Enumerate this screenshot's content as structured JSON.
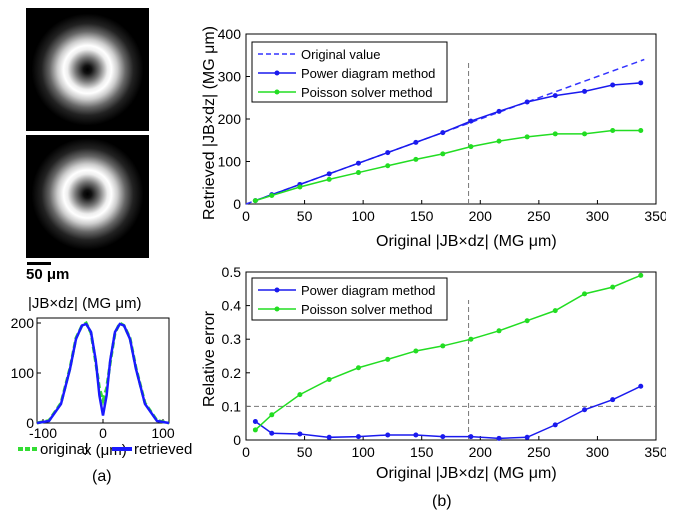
{
  "panel_labels": {
    "a": "(a)",
    "b": "(b)"
  },
  "scale_bar_label": "50 μm",
  "profile": {
    "title": "|JB×dz| (MG μm)",
    "xlabel": "x (μm)",
    "x_ticks": [
      "-100",
      "0",
      "100"
    ],
    "y_ticks": [
      "0",
      "100",
      "200"
    ],
    "legend": {
      "original": "original",
      "retrieved": "retrieved"
    },
    "colors": {
      "original": "#33dd33",
      "retrieved": "#1a1aff"
    }
  },
  "chart_data": [
    {
      "type": "line",
      "title": "",
      "xlabel": "x (μm)",
      "ylabel": "|JB×dz| (MG μm)",
      "xlim": [
        -110,
        110
      ],
      "ylim": [
        0,
        210
      ],
      "series": [
        {
          "name": "original",
          "color": "#33dd33",
          "x": [
            -110,
            -90,
            -70,
            -55,
            -45,
            -35,
            -28,
            -20,
            -12,
            -6,
            0,
            6,
            12,
            20,
            28,
            35,
            45,
            55,
            70,
            90,
            110
          ],
          "y": [
            0,
            5,
            40,
            110,
            170,
            195,
            200,
            180,
            120,
            70,
            45,
            70,
            120,
            180,
            200,
            195,
            170,
            110,
            40,
            5,
            0
          ]
        },
        {
          "name": "retrieved",
          "color": "#1a1aff",
          "x": [
            -110,
            -90,
            -70,
            -55,
            -45,
            -35,
            -28,
            -20,
            -12,
            -6,
            0,
            6,
            12,
            20,
            28,
            35,
            45,
            55,
            70,
            90,
            110
          ],
          "y": [
            0,
            4,
            38,
            108,
            168,
            195,
            198,
            182,
            125,
            55,
            15,
            55,
            125,
            182,
            198,
            195,
            168,
            108,
            38,
            4,
            0
          ]
        }
      ]
    },
    {
      "type": "line",
      "title": "",
      "xlabel": "Original |JB×dz| (MG μm)",
      "ylabel": "Retrieved |JB×dz| (MG μm)",
      "xlim": [
        0,
        350
      ],
      "ylim": [
        0,
        400
      ],
      "x_ticks": [
        0,
        50,
        100,
        150,
        200,
        250,
        300,
        350
      ],
      "y_ticks": [
        0,
        100,
        200,
        300,
        400
      ],
      "legend_position": "top-left",
      "vline": 190,
      "series": [
        {
          "name": "Original value",
          "color": "#3333ff",
          "style": "dashed",
          "x": [
            0,
            340
          ],
          "y": [
            0,
            340
          ]
        },
        {
          "name": "Power diagram method",
          "color": "#1a1aee",
          "style": "solid-marker",
          "x": [
            8,
            22,
            46,
            71,
            96,
            121,
            145,
            168,
            192,
            216,
            240,
            264,
            289,
            313,
            337
          ],
          "y": [
            8,
            22,
            46,
            71,
            96,
            121,
            145,
            168,
            195,
            218,
            240,
            255,
            265,
            280,
            285
          ]
        },
        {
          "name": "Poisson solver method",
          "color": "#22dd22",
          "style": "solid-marker",
          "x": [
            8,
            22,
            46,
            71,
            96,
            121,
            145,
            168,
            192,
            216,
            240,
            264,
            289,
            313,
            337
          ],
          "y": [
            8,
            20,
            40,
            58,
            74,
            90,
            105,
            118,
            135,
            148,
            158,
            165,
            165,
            173,
            173
          ]
        }
      ]
    },
    {
      "type": "line",
      "title": "",
      "xlabel": "Original |JB×dz| (MG μm)",
      "ylabel": "Relative error",
      "xlim": [
        0,
        350
      ],
      "ylim": [
        0,
        0.5
      ],
      "x_ticks": [
        0,
        50,
        100,
        150,
        200,
        250,
        300,
        350
      ],
      "y_ticks": [
        0,
        0.1,
        0.2,
        0.3,
        0.4,
        0.5
      ],
      "legend_position": "top-left",
      "vline": 190,
      "hline": 0.1,
      "series": [
        {
          "name": "Power diagram method",
          "color": "#1a1aee",
          "style": "solid-marker",
          "x": [
            8,
            22,
            46,
            71,
            96,
            121,
            145,
            168,
            192,
            216,
            240,
            264,
            289,
            313,
            337
          ],
          "y": [
            0.055,
            0.02,
            0.018,
            0.008,
            0.01,
            0.015,
            0.015,
            0.01,
            0.01,
            0.005,
            0.008,
            0.045,
            0.09,
            0.12,
            0.16
          ]
        },
        {
          "name": "Poisson solver method",
          "color": "#22dd22",
          "style": "solid-marker",
          "x": [
            8,
            22,
            46,
            71,
            96,
            121,
            145,
            168,
            192,
            216,
            240,
            264,
            289,
            313,
            337
          ],
          "y": [
            0.03,
            0.075,
            0.135,
            0.18,
            0.215,
            0.24,
            0.265,
            0.28,
            0.3,
            0.325,
            0.355,
            0.385,
            0.435,
            0.455,
            0.49
          ]
        }
      ]
    }
  ]
}
